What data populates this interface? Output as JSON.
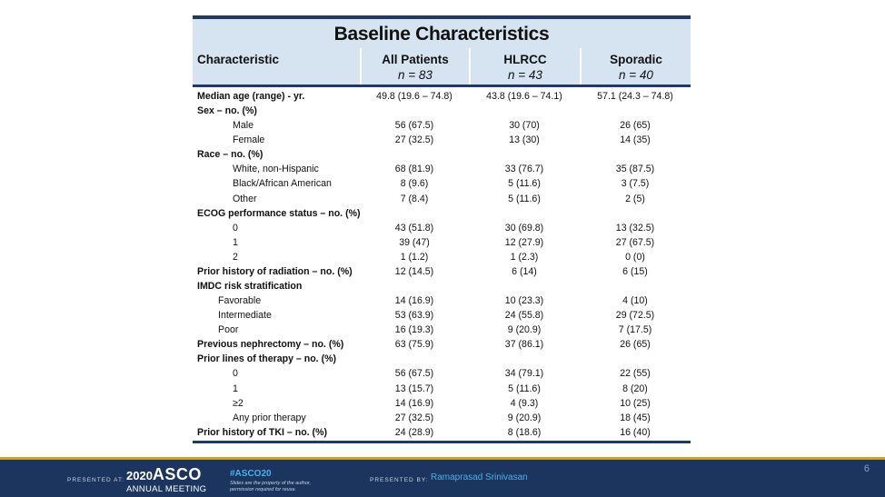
{
  "slide": {
    "title": "Baseline Characteristics",
    "page_number": "6"
  },
  "header": {
    "characteristic": "Characteristic",
    "all": {
      "name": "All Patients",
      "n": "n = 83"
    },
    "hlrcc": {
      "name": "HLRCC",
      "n": "n = 43"
    },
    "sporadic": {
      "name": "Sporadic",
      "n": "n = 40"
    }
  },
  "rows": [
    {
      "label": "Median age (range) - yr.",
      "bold": true,
      "indent": 0,
      "all": "49.8 (19.6 – 74.8)",
      "hlrcc": "43.8 (19.6 – 74.1)",
      "sporadic": "57.1 (24.3 – 74.8)"
    },
    {
      "label": "Sex – no. (%)",
      "bold": true,
      "indent": 0,
      "all": "",
      "hlrcc": "",
      "sporadic": ""
    },
    {
      "label": "Male",
      "bold": false,
      "indent": 2,
      "all": "56 (67.5)",
      "hlrcc": "30 (70)",
      "sporadic": "26 (65)"
    },
    {
      "label": "Female",
      "bold": false,
      "indent": 2,
      "all": "27 (32.5)",
      "hlrcc": "13 (30)",
      "sporadic": "14 (35)"
    },
    {
      "label": "Race – no. (%)",
      "bold": true,
      "indent": 0,
      "all": "",
      "hlrcc": "",
      "sporadic": ""
    },
    {
      "label": "White, non-Hispanic",
      "bold": false,
      "indent": 2,
      "all": "68 (81.9)",
      "hlrcc": "33 (76.7)",
      "sporadic": "35 (87.5)"
    },
    {
      "label": "Black/African American",
      "bold": false,
      "indent": 2,
      "all": "8 (9.6)",
      "hlrcc": "5 (11.6)",
      "sporadic": "3 (7.5)"
    },
    {
      "label": "Other",
      "bold": false,
      "indent": 2,
      "all": "7 (8.4)",
      "hlrcc": "5 (11.6)",
      "sporadic": "2 (5)"
    },
    {
      "label": "ECOG performance status – no. (%)",
      "bold": true,
      "indent": 0,
      "all": "",
      "hlrcc": "",
      "sporadic": ""
    },
    {
      "label": "0",
      "bold": false,
      "indent": 2,
      "all": "43 (51.8)",
      "hlrcc": "30 (69.8)",
      "sporadic": "13 (32.5)"
    },
    {
      "label": "1",
      "bold": false,
      "indent": 2,
      "all": "39 (47)",
      "hlrcc": "12 (27.9)",
      "sporadic": "27 (67.5)"
    },
    {
      "label": "2",
      "bold": false,
      "indent": 2,
      "all": "1 (1.2)",
      "hlrcc": "1 (2.3)",
      "sporadic": "0 (0)"
    },
    {
      "label": "Prior history of radiation – no. (%)",
      "bold": true,
      "indent": 0,
      "all": "12 (14.5)",
      "hlrcc": "6 (14)",
      "sporadic": "6 (15)"
    },
    {
      "label": "IMDC risk stratification",
      "bold": true,
      "indent": 0,
      "all": "",
      "hlrcc": "",
      "sporadic": ""
    },
    {
      "label": "Favorable",
      "bold": false,
      "indent": 1,
      "all": "14 (16.9)",
      "hlrcc": "10 (23.3)",
      "sporadic": "4 (10)"
    },
    {
      "label": "Intermediate",
      "bold": false,
      "indent": 1,
      "all": "53 (63.9)",
      "hlrcc": "24 (55.8)",
      "sporadic": "29 (72.5)"
    },
    {
      "label": "Poor",
      "bold": false,
      "indent": 1,
      "all": "16 (19.3)",
      "hlrcc": "9 (20.9)",
      "sporadic": "7 (17.5)"
    },
    {
      "label": "Previous nephrectomy – no. (%)",
      "bold": true,
      "indent": 0,
      "all": "63 (75.9)",
      "hlrcc": "37 (86.1)",
      "sporadic": "26 (65)"
    },
    {
      "label": "Prior lines of therapy – no. (%)",
      "bold": true,
      "indent": 0,
      "all": "",
      "hlrcc": "",
      "sporadic": ""
    },
    {
      "label": "0",
      "bold": false,
      "indent": 2,
      "all": "56 (67.5)",
      "hlrcc": "34 (79.1)",
      "sporadic": "22 (55)"
    },
    {
      "label": "1",
      "bold": false,
      "indent": 2,
      "all": "13 (15.7)",
      "hlrcc": "5 (11.6)",
      "sporadic": "8 (20)"
    },
    {
      "label": "≥2",
      "bold": false,
      "indent": 2,
      "all": "14 (16.9)",
      "hlrcc": "4 (9.3)",
      "sporadic": "10 (25)"
    },
    {
      "label": "Any prior therapy",
      "bold": false,
      "indent": 2,
      "all": "27 (32.5)",
      "hlrcc": "9 (20.9)",
      "sporadic": "18 (45)"
    },
    {
      "label": "Prior history of TKI – no. (%)",
      "bold": true,
      "indent": 0,
      "all": "24 (28.9)",
      "hlrcc": "8 (18.6)",
      "sporadic": "16 (40)"
    }
  ],
  "footer": {
    "presented_at": "PRESENTED AT:",
    "asco_year": "2020",
    "asco_name": "ASCO",
    "asco_sub": "ANNUAL MEETING",
    "hashtag": "#ASCO20",
    "fine_print": "Slides are the property of the author, permission required for reuse.",
    "presented_by": "PRESENTED BY:",
    "presenter": "Ramaprasad Srinivasan"
  },
  "colors": {
    "navy": "#1f3a68",
    "header_fill": "#d6e3f1",
    "footer_bg": "#1c355e",
    "accent_blue": "#4ab0e8",
    "gold": "#c9a227"
  }
}
